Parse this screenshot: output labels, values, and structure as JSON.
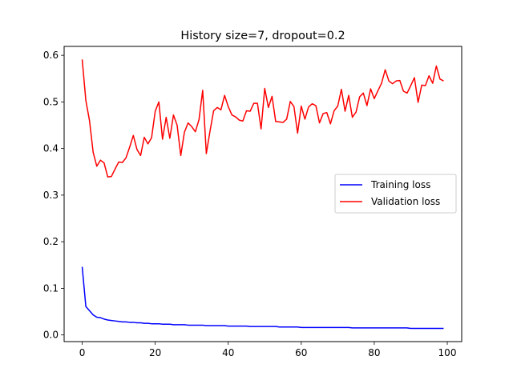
{
  "chart_data": {
    "type": "line",
    "title": "History size=7, dropout=0.2",
    "xlabel": "",
    "ylabel": "",
    "xlim": [
      -4.95,
      103.95
    ],
    "ylim": [
      -0.0143,
      0.6191
    ],
    "xticks": [
      0,
      20,
      40,
      60,
      80,
      100
    ],
    "yticks": [
      0.0,
      0.1,
      0.2,
      0.3,
      0.4,
      0.5,
      0.6
    ],
    "ytick_labels": [
      "0.0",
      "0.1",
      "0.2",
      "0.3",
      "0.4",
      "0.5",
      "0.6"
    ],
    "grid": false,
    "legend_position": "center-right",
    "series": [
      {
        "name": "Training loss",
        "color": "#0000ff",
        "x": [
          0,
          1,
          2,
          3,
          4,
          5,
          6,
          7,
          8,
          9,
          10,
          11,
          12,
          13,
          14,
          15,
          16,
          17,
          18,
          19,
          20,
          21,
          22,
          23,
          24,
          25,
          26,
          27,
          28,
          29,
          30,
          31,
          32,
          33,
          34,
          35,
          36,
          37,
          38,
          39,
          40,
          41,
          42,
          43,
          44,
          45,
          46,
          47,
          48,
          49,
          50,
          51,
          52,
          53,
          54,
          55,
          56,
          57,
          58,
          59,
          60,
          61,
          62,
          63,
          64,
          65,
          66,
          67,
          68,
          69,
          70,
          71,
          72,
          73,
          74,
          75,
          76,
          77,
          78,
          79,
          80,
          81,
          82,
          83,
          84,
          85,
          86,
          87,
          88,
          89,
          90,
          91,
          92,
          93,
          94,
          95,
          96,
          97,
          98,
          99
        ],
        "y": [
          0.146,
          0.061,
          0.052,
          0.043,
          0.038,
          0.037,
          0.034,
          0.032,
          0.031,
          0.03,
          0.029,
          0.028,
          0.028,
          0.027,
          0.027,
          0.026,
          0.026,
          0.025,
          0.025,
          0.024,
          0.024,
          0.024,
          0.023,
          0.023,
          0.023,
          0.022,
          0.022,
          0.022,
          0.022,
          0.021,
          0.021,
          0.021,
          0.021,
          0.021,
          0.02,
          0.02,
          0.02,
          0.02,
          0.02,
          0.02,
          0.019,
          0.019,
          0.019,
          0.019,
          0.019,
          0.019,
          0.018,
          0.018,
          0.018,
          0.018,
          0.018,
          0.018,
          0.018,
          0.018,
          0.017,
          0.017,
          0.017,
          0.017,
          0.017,
          0.017,
          0.016,
          0.016,
          0.016,
          0.016,
          0.016,
          0.016,
          0.016,
          0.016,
          0.016,
          0.016,
          0.016,
          0.016,
          0.016,
          0.016,
          0.015,
          0.015,
          0.015,
          0.015,
          0.015,
          0.015,
          0.015,
          0.015,
          0.015,
          0.015,
          0.015,
          0.015,
          0.015,
          0.015,
          0.015,
          0.015,
          0.014,
          0.014,
          0.014,
          0.014,
          0.014,
          0.014,
          0.014,
          0.014,
          0.014,
          0.014
        ]
      },
      {
        "name": "Validation loss",
        "color": "#ff0000",
        "x": [
          0,
          1,
          2,
          3,
          4,
          5,
          6,
          7,
          8,
          9,
          10,
          11,
          12,
          13,
          14,
          15,
          16,
          17,
          18,
          19,
          20,
          21,
          22,
          23,
          24,
          25,
          26,
          27,
          28,
          29,
          30,
          31,
          32,
          33,
          34,
          35,
          36,
          37,
          38,
          39,
          40,
          41,
          42,
          43,
          44,
          45,
          46,
          47,
          48,
          49,
          50,
          51,
          52,
          53,
          54,
          55,
          56,
          57,
          58,
          59,
          60,
          61,
          62,
          63,
          64,
          65,
          66,
          67,
          68,
          69,
          70,
          71,
          72,
          73,
          74,
          75,
          76,
          77,
          78,
          79,
          80,
          81,
          82,
          83,
          84,
          85,
          86,
          87,
          88,
          89,
          90,
          91,
          92,
          93,
          94,
          95,
          96,
          97,
          98,
          99
        ],
        "y": [
          0.591,
          0.503,
          0.46,
          0.392,
          0.362,
          0.375,
          0.369,
          0.339,
          0.34,
          0.356,
          0.371,
          0.37,
          0.38,
          0.403,
          0.428,
          0.398,
          0.385,
          0.424,
          0.41,
          0.423,
          0.48,
          0.5,
          0.42,
          0.467,
          0.422,
          0.472,
          0.45,
          0.385,
          0.435,
          0.455,
          0.447,
          0.436,
          0.462,
          0.525,
          0.389,
          0.437,
          0.481,
          0.488,
          0.483,
          0.514,
          0.49,
          0.472,
          0.468,
          0.461,
          0.459,
          0.481,
          0.48,
          0.497,
          0.497,
          0.442,
          0.529,
          0.488,
          0.512,
          0.458,
          0.457,
          0.456,
          0.463,
          0.501,
          0.49,
          0.433,
          0.491,
          0.463,
          0.489,
          0.496,
          0.492,
          0.455,
          0.475,
          0.477,
          0.453,
          0.481,
          0.491,
          0.527,
          0.48,
          0.514,
          0.467,
          0.478,
          0.511,
          0.519,
          0.492,
          0.528,
          0.507,
          0.524,
          0.54,
          0.569,
          0.545,
          0.539,
          0.545,
          0.546,
          0.523,
          0.519,
          0.535,
          0.552,
          0.499,
          0.536,
          0.535,
          0.556,
          0.54,
          0.577,
          0.549,
          0.545
        ]
      }
    ]
  }
}
